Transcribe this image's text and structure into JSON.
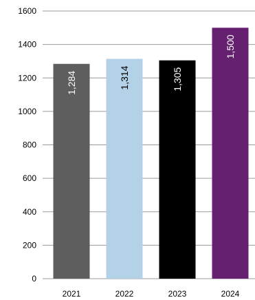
{
  "chart_data": {
    "type": "bar",
    "categories": [
      "2021",
      "2022",
      "2023",
      "2024"
    ],
    "values": [
      1284,
      1314,
      1305,
      1500
    ],
    "data_labels": [
      "1,284",
      "1,314",
      "1,305",
      "1,500"
    ],
    "bar_colors": [
      "#5e5e5e",
      "#b3d2e7",
      "#000000",
      "#65206f"
    ],
    "label_colors": [
      "#ffffff",
      "#000000",
      "#ffffff",
      "#ffffff"
    ],
    "title": "",
    "xlabel": "",
    "ylabel": "",
    "ylim": [
      0,
      1600
    ],
    "yticks": [
      0,
      200,
      400,
      600,
      800,
      1000,
      1200,
      1400,
      1600
    ],
    "grid": true,
    "gridline_color": "#9a9a9a",
    "legend": "none"
  }
}
